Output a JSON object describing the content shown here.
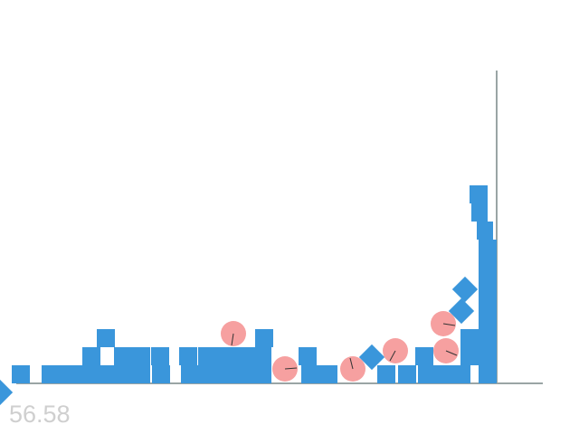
{
  "score": "56.58"
}
